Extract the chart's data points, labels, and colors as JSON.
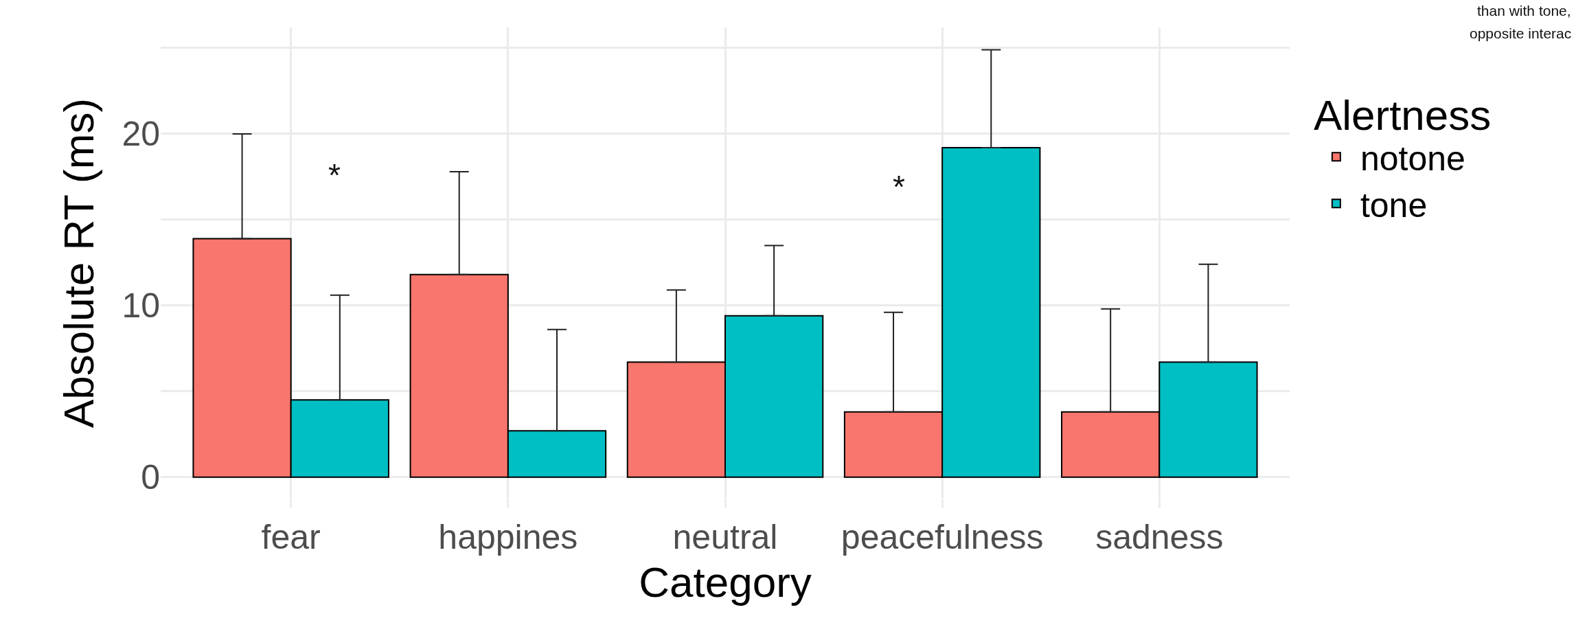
{
  "chart_data": {
    "type": "bar",
    "xlabel": "Category",
    "ylabel": "Absolute RT (ms)",
    "legend_title": "Alertness",
    "categories": [
      "fear",
      "happines",
      "neutral",
      "peacefulness",
      "sadness"
    ],
    "series": [
      {
        "name": "notone",
        "color": "#f8766d",
        "values": [
          13.9,
          11.8,
          6.7,
          3.8,
          3.8
        ],
        "errors": [
          [
            13.9,
            20.0
          ],
          [
            11.8,
            17.8
          ],
          [
            6.7,
            10.9
          ],
          [
            3.8,
            9.6
          ],
          [
            3.8,
            9.8
          ]
        ]
      },
      {
        "name": "tone",
        "color": "#00bfc4",
        "values": [
          4.5,
          2.7,
          9.4,
          19.2,
          6.7
        ],
        "errors": [
          [
            4.5,
            10.6
          ],
          [
            2.7,
            8.6
          ],
          [
            9.4,
            13.5
          ],
          [
            19.2,
            24.9
          ],
          [
            6.7,
            12.4
          ]
        ]
      }
    ],
    "ylim": [
      -1.25,
      26.2
    ],
    "yticks": [
      0,
      {
        "value": 5,
        "label": null
      },
      10,
      {
        "value": 15,
        "label": null
      },
      20,
      {
        "value": 25,
        "label": null
      }
    ],
    "grid": true,
    "legend": "top right",
    "annotations": [
      "*",
      "*",
      "than with tone,",
      "opposite interac"
    ]
  }
}
